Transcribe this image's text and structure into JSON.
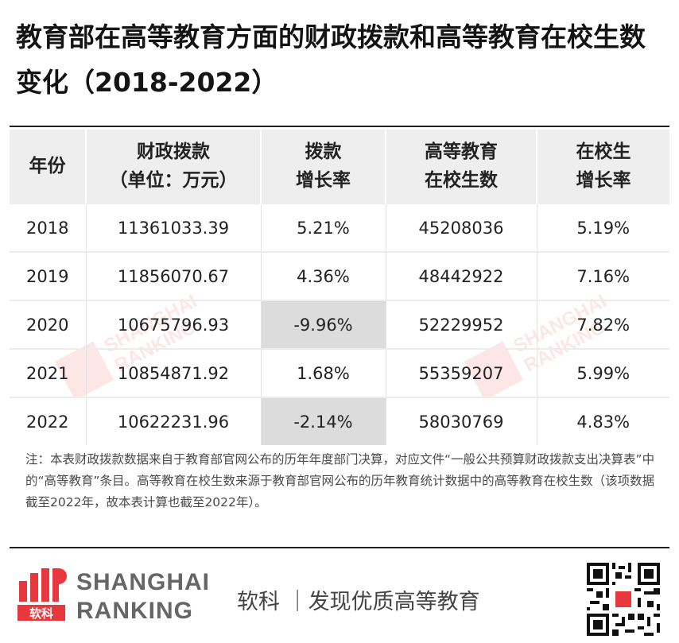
{
  "title": "教育部在高等教育方面的财政拨款和高等教育在校生数变化（2018-2022）",
  "table": {
    "headers": [
      {
        "line1": "年份",
        "line2": ""
      },
      {
        "line1": "财政拨款",
        "line2": "（单位：万元）"
      },
      {
        "line1": "拨款",
        "line2": "增长率"
      },
      {
        "line1": "高等教育",
        "line2": "在校生数"
      },
      {
        "line1": "在校生",
        "line2": "增长率"
      }
    ],
    "rows": [
      {
        "year": "2018",
        "funding": "11361033.39",
        "funding_growth": "5.21%",
        "students": "45208036",
        "student_growth": "5.19%"
      },
      {
        "year": "2019",
        "funding": "11856070.67",
        "funding_growth": "4.36%",
        "students": "48442922",
        "student_growth": "7.16%"
      },
      {
        "year": "2020",
        "funding": "10675796.93",
        "funding_growth": "-9.96%",
        "students": "52229952",
        "student_growth": "7.82%"
      },
      {
        "year": "2021",
        "funding": "10854871.92",
        "funding_growth": "1.68%",
        "students": "55359207",
        "student_growth": "5.99%"
      },
      {
        "year": "2022",
        "funding": "10622231.96",
        "funding_growth": "-2.14%",
        "students": "58030769",
        "student_growth": "4.83%"
      }
    ]
  },
  "note": "注：本表财政拨款数据来自于教育部官网公布的历年年度部门决算，对应文件“一般公共预算财政拨款支出决算表”中的“高等教育”条目。高等教育在校生数来源于教育部官网公布的历年教育统计数据中的高等教育在校生数（该项数据截至2022年，故本表计算也截至2022年）。",
  "footer": {
    "logo_text": "软科",
    "brand_line1": "SHANGHAI",
    "brand_line2": "RANKING",
    "slogan": "软科 ｜发现优质高等教育"
  },
  "colors": {
    "brand_red": "#e8383d",
    "shaded_cell": "#dcdcdc",
    "header_bg": "#eeeeee"
  }
}
